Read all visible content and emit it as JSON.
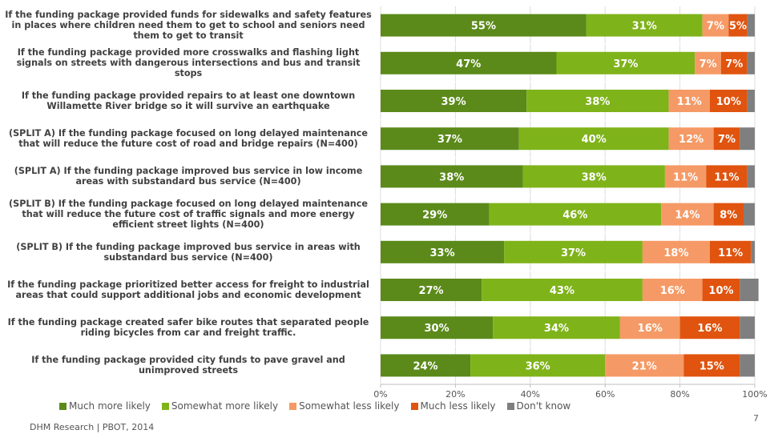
{
  "chart_data": {
    "type": "bar",
    "orientation": "horizontal",
    "stacked": true,
    "categories": [
      "If the funding package provided funds for sidewalks and safety features in places where children need them to get to school and seniors need them to get to transit",
      "If the funding package provided more crosswalks and flashing light signals on streets with dangerous intersections and bus and transit stops",
      "If the funding package provided repairs to at least one downtown Willamette River bridge so it will survive an earthquake",
      "(SPLIT A) If the funding package focused on long delayed maintenance that will reduce the future cost of road and bridge repairs (N=400)",
      "(SPLIT A) If the funding package improved bus service in low income areas with substandard bus service (N=400)",
      "(SPLIT B) If the funding package focused on long delayed maintenance that will reduce the future cost of traffic signals and more energy efficient street lights (N=400)",
      "(SPLIT B) If the funding package improved bus service in areas with substandard bus service (N=400)",
      "If the funding package prioritized better access for freight to industrial areas that could support additional jobs and economic development",
      "If the funding package created safer bike routes that separated people riding bicycles from car and freight traffic.",
      "If the funding package provided city funds to pave gravel and unimproved streets"
    ],
    "series": [
      {
        "name": "Much more likely",
        "color": "#5b8a1a",
        "values": [
          55,
          47,
          39,
          37,
          38,
          29,
          33,
          27,
          30,
          24
        ]
      },
      {
        "name": "Somewhat more likely",
        "color": "#7fb31a",
        "values": [
          31,
          37,
          38,
          40,
          38,
          46,
          37,
          43,
          34,
          36
        ]
      },
      {
        "name": "Somewhat less likely",
        "color": "#f59a66",
        "values": [
          7,
          7,
          11,
          12,
          11,
          14,
          18,
          16,
          16,
          21
        ]
      },
      {
        "name": "Much less likely",
        "color": "#e0540f",
        "values": [
          5,
          7,
          10,
          7,
          11,
          8,
          11,
          10,
          16,
          15
        ]
      },
      {
        "name": "Don't know",
        "color": "#7f7f7f",
        "values": [
          2,
          2,
          2,
          4,
          2,
          3,
          1,
          5,
          4,
          4
        ]
      }
    ],
    "show_labels_for_series": [
      0,
      1,
      2,
      3
    ],
    "x_ticks": [
      "0%",
      "20%",
      "40%",
      "60%",
      "80%",
      "100%"
    ],
    "xlim": [
      0,
      100
    ],
    "legend_position": "bottom"
  },
  "footer": {
    "source": "DHM Research | PBOT, 2014",
    "page_number": "7"
  }
}
